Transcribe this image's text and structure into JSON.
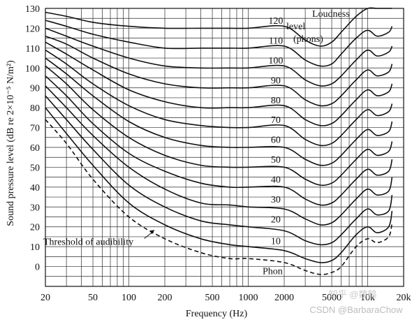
{
  "chart_data": {
    "type": "line",
    "title": "",
    "xlabel": "Frequency (Hz)",
    "ylabel": "Sound pressure level (dB re 2×10⁻⁵ N/m²)",
    "xscale": "log",
    "xlim": [
      20,
      20000
    ],
    "ylim": [
      -10,
      130
    ],
    "grid": true,
    "xticks": [
      {
        "value": 20,
        "label": "20"
      },
      {
        "value": 50,
        "label": "50"
      },
      {
        "value": 100,
        "label": "100"
      },
      {
        "value": 200,
        "label": "200"
      },
      {
        "value": 500,
        "label": "500"
      },
      {
        "value": 1000,
        "label": "1000"
      },
      {
        "value": 2000,
        "label": "2000"
      },
      {
        "value": 5000,
        "label": "5000"
      },
      {
        "value": 10000,
        "label": "10k"
      },
      {
        "value": 20000,
        "label": "20k"
      }
    ],
    "yticks": [
      0,
      10,
      20,
      30,
      40,
      50,
      60,
      70,
      80,
      90,
      100,
      110,
      120,
      130
    ],
    "series": [
      {
        "name": "Threshold of audibility",
        "dashed": true,
        "x": [
          20,
          30,
          50,
          100,
          200,
          400,
          700,
          1000,
          2000,
          3000,
          4000,
          5000,
          6000,
          8000,
          10000,
          12000,
          15000,
          16000
        ],
        "y": [
          74,
          62,
          44,
          25,
          14,
          7,
          4,
          4,
          2,
          -2,
          -4,
          -3,
          0,
          10,
          14,
          12,
          15,
          22
        ]
      },
      {
        "name": "10",
        "x": [
          20,
          30,
          50,
          100,
          200,
          400,
          700,
          1000,
          2000,
          3000,
          4000,
          5000,
          6000,
          8000,
          10000,
          12000,
          15000,
          16000
        ],
        "y": [
          80,
          67,
          51,
          32,
          21,
          14,
          11,
          10,
          8,
          4,
          2,
          3,
          7,
          16,
          20,
          17,
          20,
          28
        ]
      },
      {
        "name": "20",
        "x": [
          20,
          30,
          50,
          100,
          200,
          400,
          700,
          1000,
          2000,
          3000,
          4000,
          5000,
          6000,
          8000,
          10000,
          12000,
          15000,
          16000
        ],
        "y": [
          86,
          74,
          59,
          41,
          30,
          23,
          21,
          20,
          18,
          13,
          11,
          12,
          16,
          24,
          29,
          26,
          28,
          36
        ]
      },
      {
        "name": "30",
        "x": [
          20,
          30,
          50,
          100,
          200,
          400,
          700,
          1000,
          2000,
          3000,
          4000,
          5000,
          6000,
          8000,
          10000,
          12000,
          15000,
          16000
        ],
        "y": [
          91,
          80,
          66,
          50,
          39,
          32,
          31,
          30,
          29,
          24,
          21,
          22,
          26,
          34,
          39,
          36,
          38,
          45
        ]
      },
      {
        "name": "40",
        "x": [
          20,
          30,
          50,
          100,
          200,
          400,
          700,
          1000,
          2000,
          3000,
          4000,
          5000,
          6000,
          8000,
          10000,
          12000,
          15000,
          16000
        ],
        "y": [
          96,
          86,
          72,
          57,
          48,
          42,
          40,
          40,
          40,
          34,
          31,
          32,
          36,
          44,
          49,
          46,
          48,
          54
        ]
      },
      {
        "name": "50",
        "x": [
          20,
          30,
          50,
          100,
          200,
          400,
          700,
          1000,
          2000,
          3000,
          4000,
          5000,
          6000,
          8000,
          10000,
          12000,
          15000,
          16000
        ],
        "y": [
          101,
          92,
          79,
          65,
          56,
          51,
          50,
          50,
          50,
          44,
          41,
          42,
          46,
          54,
          59,
          56,
          58,
          63
        ]
      },
      {
        "name": "60",
        "x": [
          20,
          30,
          50,
          100,
          200,
          400,
          700,
          1000,
          2000,
          3000,
          4000,
          5000,
          6000,
          8000,
          10000,
          12000,
          15000,
          16000
        ],
        "y": [
          105,
          97,
          86,
          73,
          65,
          61,
          60,
          60,
          60,
          54,
          51,
          52,
          56,
          64,
          69,
          66,
          68,
          73
        ]
      },
      {
        "name": "70",
        "x": [
          20,
          30,
          50,
          100,
          200,
          400,
          700,
          1000,
          2000,
          3000,
          4000,
          5000,
          6000,
          8000,
          10000,
          12000,
          15000,
          16000
        ],
        "y": [
          109,
          102,
          92,
          81,
          74,
          71,
          70,
          70,
          71,
          64,
          61,
          62,
          66,
          74,
          79,
          76,
          78,
          82
        ]
      },
      {
        "name": "80",
        "x": [
          20,
          30,
          50,
          100,
          200,
          400,
          700,
          1000,
          2000,
          3000,
          4000,
          5000,
          6000,
          8000,
          10000,
          12000,
          15000,
          16000
        ],
        "y": [
          113,
          107,
          99,
          89,
          83,
          80,
          80,
          80,
          81,
          74,
          71,
          72,
          76,
          84,
          89,
          86,
          88,
          92
        ]
      },
      {
        "name": "90",
        "x": [
          20,
          30,
          50,
          100,
          200,
          400,
          700,
          1000,
          2000,
          3000,
          4000,
          5000,
          6000,
          8000,
          10000,
          12000,
          15000,
          16000
        ],
        "y": [
          116,
          112,
          105,
          97,
          92,
          90,
          90,
          90,
          91,
          84,
          81,
          82,
          86,
          94,
          99,
          96,
          98,
          102
        ]
      },
      {
        "name": "100",
        "x": [
          20,
          30,
          50,
          100,
          200,
          400,
          700,
          1000,
          2000,
          3000,
          4000,
          5000,
          6000,
          8000,
          10000,
          12000,
          15000,
          16000
        ],
        "y": [
          120,
          116,
          111,
          105,
          101,
          100,
          100,
          100,
          101,
          94,
          91,
          92,
          96,
          104,
          109,
          106,
          108,
          111
        ]
      },
      {
        "name": "110",
        "x": [
          20,
          30,
          50,
          100,
          200,
          400,
          700,
          1000,
          2000,
          3000,
          4000,
          5000,
          6000,
          8000,
          10000,
          12000,
          15000,
          16000
        ],
        "y": [
          124,
          121,
          117,
          113,
          110,
          110,
          110,
          110,
          111,
          104,
          101,
          102,
          107,
          115,
          119,
          116,
          118,
          121
        ]
      },
      {
        "name": "120",
        "x": [
          20,
          30,
          50,
          100,
          200,
          400,
          700,
          1000,
          2000,
          3000,
          4000,
          5000,
          6000,
          8000,
          10000,
          12000,
          15000,
          16000
        ],
        "y": [
          128,
          126,
          123,
          121,
          120,
          120,
          120,
          120,
          121,
          114,
          111,
          113,
          118,
          126,
          130,
          131,
          131,
          131
        ]
      }
    ],
    "curve_labels": [
      {
        "text": "120",
        "x": 1700,
        "y": 124
      },
      {
        "text": "110",
        "x": 1700,
        "y": 114
      },
      {
        "text": "100",
        "x": 1700,
        "y": 104
      },
      {
        "text": "90",
        "x": 1700,
        "y": 94
      },
      {
        "text": "80",
        "x": 1700,
        "y": 84
      },
      {
        "text": "70",
        "x": 1700,
        "y": 74
      },
      {
        "text": "60",
        "x": 1700,
        "y": 64
      },
      {
        "text": "50",
        "x": 1700,
        "y": 54
      },
      {
        "text": "40",
        "x": 1700,
        "y": 44
      },
      {
        "text": "30",
        "x": 1700,
        "y": 34
      },
      {
        "text": "20",
        "x": 1700,
        "y": 24
      },
      {
        "text": "10",
        "x": 1700,
        "y": 13
      },
      {
        "text": "Phon",
        "x": 1600,
        "y": -2
      }
    ],
    "legend_title_lines": [
      "Loudness",
      "level",
      "(phons)"
    ],
    "threshold_annotation": {
      "text": "Threshold of audibility",
      "x_from": 40,
      "y_from": 12,
      "x_to": 140,
      "y_to": 17
    },
    "watermark": "CSDN @BarbaraChow",
    "watermark_faint": "知乎 @魏鹤"
  }
}
